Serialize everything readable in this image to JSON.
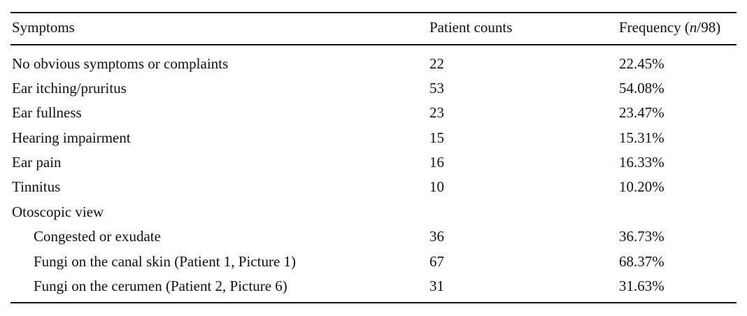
{
  "table": {
    "headers": {
      "symptoms": "Symptoms",
      "counts": "Patient counts",
      "frequency_prefix": "Frequency (",
      "frequency_n": "n",
      "frequency_suffix": "/98)"
    },
    "rows": [
      {
        "label": "No obvious symptoms or complaints",
        "count": "22",
        "freq": "22.45%"
      },
      {
        "label": "Ear itching/pruritus",
        "count": "53",
        "freq": "54.08%"
      },
      {
        "label": "Ear fullness",
        "count": "23",
        "freq": "23.47%"
      },
      {
        "label": "Hearing impairment",
        "count": "15",
        "freq": "15.31%"
      },
      {
        "label": "Ear pain",
        "count": "16",
        "freq": "16.33%"
      },
      {
        "label": "Tinnitus",
        "count": "10",
        "freq": "10.20%"
      },
      {
        "label": "Otoscopic view",
        "count": "",
        "freq": ""
      },
      {
        "label": "Congested or exudate",
        "count": "36",
        "freq": "36.73%"
      },
      {
        "label": "Fungi on the canal skin (Patient 1, Picture 1)",
        "count": "67",
        "freq": "68.37%"
      },
      {
        "label": "Fungi on the cerumen (Patient 2, Picture 6)",
        "count": "31",
        "freq": "31.63%"
      }
    ]
  }
}
